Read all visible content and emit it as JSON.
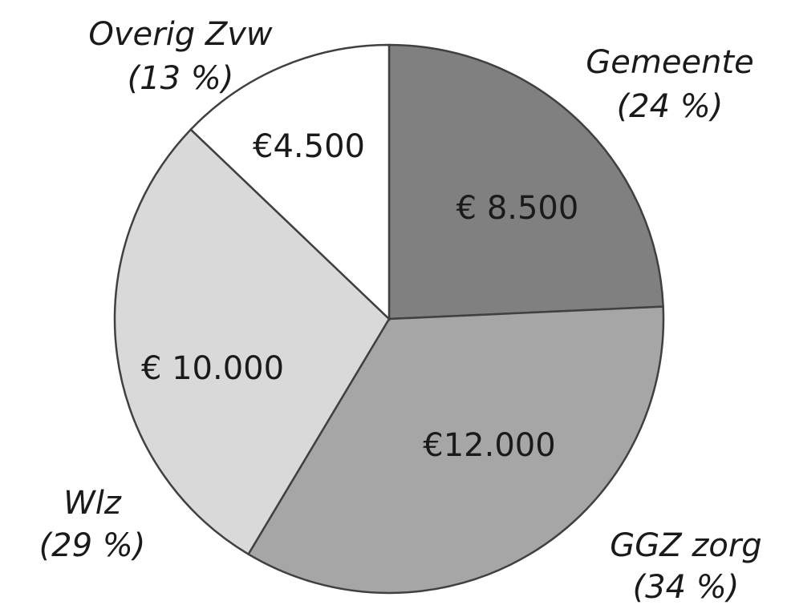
{
  "chart_data": {
    "type": "pie",
    "categories": [
      "Gemeente",
      "GGZ zorg",
      "Wlz",
      "Overig Zvw"
    ],
    "values": [
      8500,
      12000,
      10000,
      4500
    ],
    "value_labels": [
      "€ 8.500",
      "€12.000",
      "€ 10.000",
      "€4.500"
    ],
    "percentages": [
      24,
      34,
      29,
      13
    ],
    "percentage_labels": [
      "(24 %)",
      "(34 %)",
      "(29 %)",
      "(13 %)"
    ],
    "colors": [
      "#808080",
      "#a6a6a6",
      "#d9d9d9",
      "#ffffff"
    ]
  }
}
